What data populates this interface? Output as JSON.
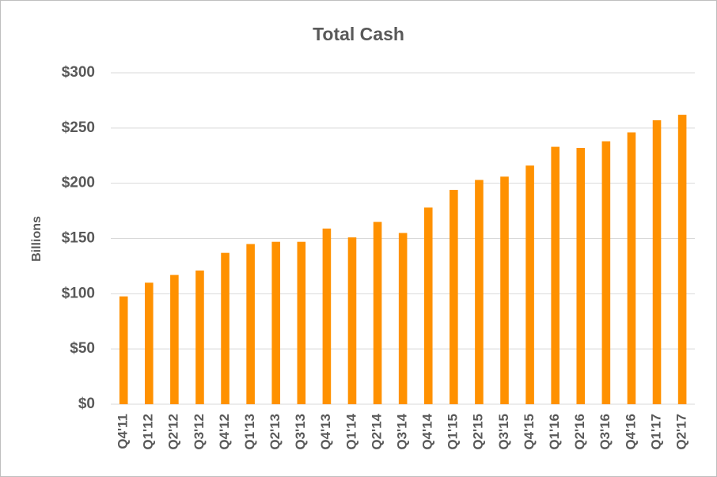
{
  "chart_data": {
    "type": "bar",
    "title": "Total Cash",
    "y_label": "Billions",
    "categories": [
      "Q4'11",
      "Q1'12",
      "Q2'12",
      "Q3'12",
      "Q4'12",
      "Q1'13",
      "Q2'13",
      "Q3'13",
      "Q4'13",
      "Q1'14",
      "Q2'14",
      "Q3'14",
      "Q4'14",
      "Q1'15",
      "Q2'15",
      "Q3'15",
      "Q4'15",
      "Q1'16",
      "Q2'16",
      "Q3'16",
      "Q4'16",
      "Q1'17",
      "Q2'17"
    ],
    "values": [
      97.6,
      110,
      117,
      121,
      137,
      145,
      147,
      147,
      159,
      151,
      165,
      155,
      178,
      194,
      203,
      206,
      216,
      233,
      232,
      238,
      246,
      257,
      262
    ],
    "color": "#ff9100",
    "ylim": [
      0,
      300
    ],
    "yticks": [
      {
        "value": 0,
        "label": "$0"
      },
      {
        "value": 50,
        "label": "$50"
      },
      {
        "value": 100,
        "label": "$100"
      },
      {
        "value": 150,
        "label": "$150"
      },
      {
        "value": 200,
        "label": "$200"
      },
      {
        "value": 250,
        "label": "$250"
      },
      {
        "value": 300,
        "label": "$300"
      }
    ],
    "grid": true
  }
}
